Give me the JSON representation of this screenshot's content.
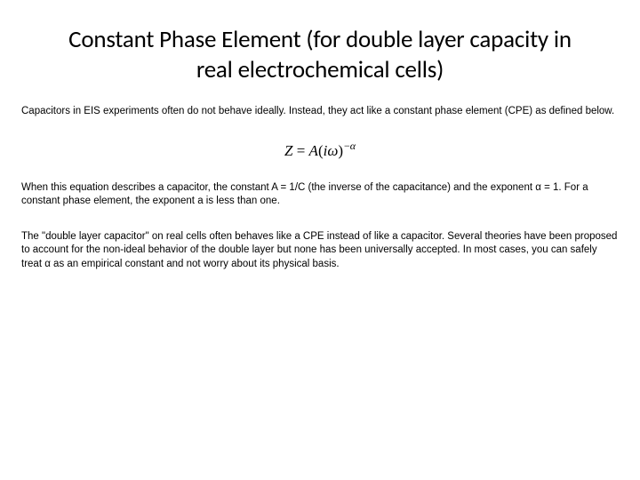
{
  "title": "Constant Phase Element (for double layer capacity in real electrochemical cells)",
  "para1": "Capacitors in EIS experiments often do not behave ideally. Instead, they act like a constant phase element (CPE) as defined below.",
  "equation": {
    "Z": "Z",
    "eq": " = ",
    "A": "A",
    "open": "(",
    "i": "i",
    "omega": "ω",
    "close": ")",
    "neg": "−",
    "alpha": "α"
  },
  "para2": "When this equation describes a capacitor, the constant A = 1/C (the inverse of the capacitance) and the exponent   α = 1. For a constant phase element, the exponent a is less than one.",
  "para3": "The \"double layer capacitor\" on real cells often behaves like a CPE instead of like a capacitor. Several theories have been proposed to account for the non-ideal behavior of the double layer but none has been universally accepted. In most cases, you can safely treat α as an empirical constant and not worry about its physical basis."
}
